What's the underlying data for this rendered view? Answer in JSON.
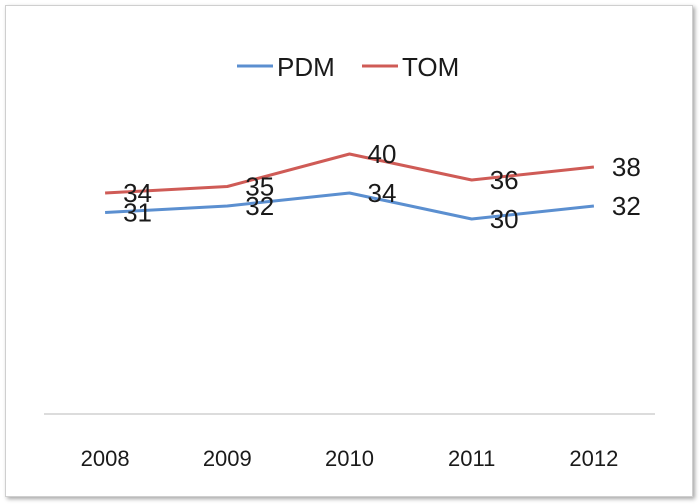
{
  "chart_data": {
    "type": "line",
    "categories": [
      "2008",
      "2009",
      "2010",
      "2011",
      "2012"
    ],
    "series": [
      {
        "name": "PDM",
        "values": [
          31,
          32,
          34,
          30,
          32
        ],
        "color": "#5b8fd0"
      },
      {
        "name": "TOM",
        "values": [
          34,
          35,
          40,
          36,
          38
        ],
        "color": "#cf5b56"
      }
    ],
    "title": "",
    "xlabel": "",
    "ylabel": "",
    "ylim": [
      0,
      60
    ],
    "grid": false,
    "legend_position": "top-center",
    "data_labels": true
  }
}
